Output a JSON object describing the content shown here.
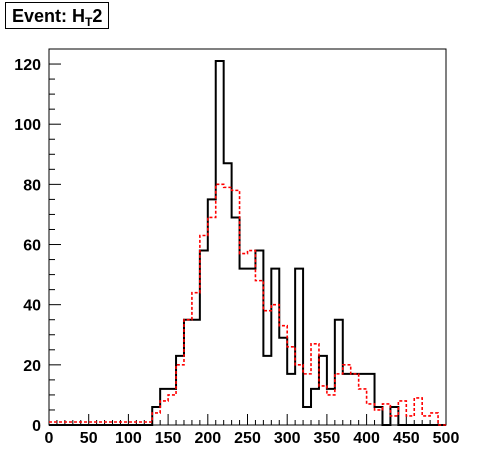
{
  "title": {
    "prefix": "Event: H",
    "subscript": "T",
    "suffix": "2"
  },
  "chart_data": {
    "type": "histogram",
    "title": "Event: HT2",
    "xlim": [
      0,
      500
    ],
    "ylim": [
      0,
      125
    ],
    "x_ticks": [
      0,
      50,
      100,
      150,
      200,
      250,
      300,
      350,
      400,
      450,
      500
    ],
    "y_ticks": [
      0,
      20,
      40,
      60,
      80,
      100,
      120
    ],
    "bin_width": 10,
    "bin_edges_start": 0,
    "grid": false,
    "series": [
      {
        "style": "solid",
        "color": "#000000",
        "values": [
          0,
          0,
          0,
          0,
          0,
          0,
          0,
          0,
          0,
          0,
          0,
          0,
          0,
          6,
          12,
          12,
          23,
          35,
          35,
          58,
          75,
          121,
          87,
          69,
          52,
          52,
          58,
          23,
          52,
          29,
          17,
          52,
          6,
          12,
          23,
          12,
          35,
          17,
          17,
          17,
          17,
          6,
          0,
          6,
          0,
          0,
          0,
          0,
          0,
          0
        ]
      },
      {
        "style": "dashed",
        "color": "#ff0000",
        "values": [
          1,
          1,
          1,
          1,
          1,
          1,
          1,
          1,
          1,
          1,
          1,
          1,
          1,
          4,
          8,
          10,
          20,
          35,
          44,
          63,
          69,
          80,
          79,
          78,
          57,
          58,
          48,
          38,
          40,
          33,
          26,
          20,
          17,
          27,
          13,
          10,
          17,
          20,
          17,
          12,
          7,
          5,
          7,
          3,
          8,
          3,
          9,
          3,
          4,
          0
        ]
      }
    ]
  }
}
